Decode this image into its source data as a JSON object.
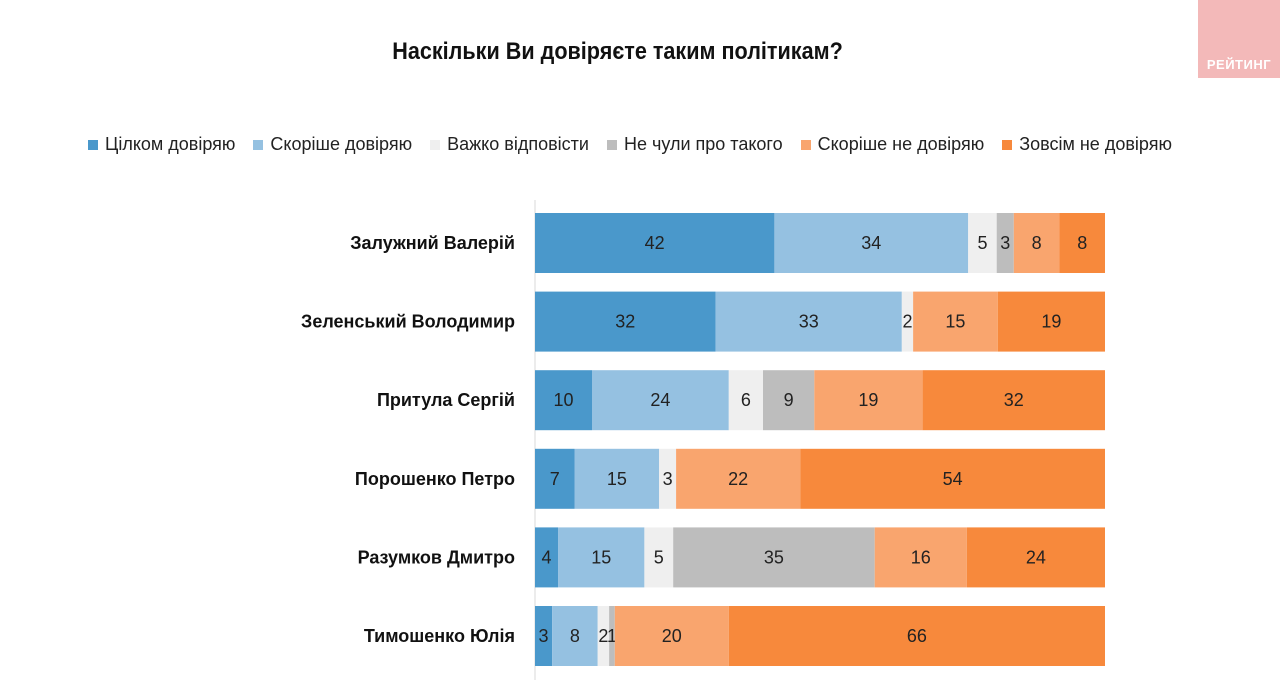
{
  "logo_text": "РЕЙТИНГ",
  "chart_data": {
    "type": "bar",
    "orientation": "horizontal",
    "stacked": true,
    "title": "Наскільки Ви довіряєте таким політикам?",
    "legend_position": "top",
    "categories": [
      "Залужний Валерій",
      "Зеленський Володимир",
      "Притула Сергій",
      "Порошенко Петро",
      "Разумков Дмитро",
      "Тимошенко Юлія"
    ],
    "series": [
      {
        "name": "Цілком довіряю",
        "color": "#4a98cb",
        "values": [
          42,
          32,
          10,
          7,
          4,
          3
        ]
      },
      {
        "name": "Скоріше довіряю",
        "color": "#95c1e1",
        "values": [
          34,
          33,
          24,
          15,
          15,
          8
        ]
      },
      {
        "name": "Важко відповісти",
        "color": "#efefef",
        "values": [
          5,
          2,
          6,
          3,
          5,
          2
        ]
      },
      {
        "name": "Не чули про такого",
        "color": "#bdbdbd",
        "values": [
          3,
          0,
          9,
          0,
          35,
          1
        ]
      },
      {
        "name": "Скоріше не довіряю",
        "color": "#f9a56e",
        "values": [
          8,
          15,
          19,
          22,
          16,
          20
        ]
      },
      {
        "name": "Зовсім не довіряю",
        "color": "#f7893c",
        "values": [
          8,
          19,
          32,
          54,
          24,
          66
        ]
      }
    ]
  }
}
